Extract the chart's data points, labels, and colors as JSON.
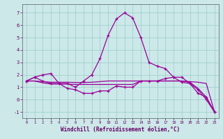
{
  "xlabel": "Windchill (Refroidissement éolien,°C)",
  "bg_color": "#cce8e8",
  "line_color": "#990099",
  "grid_color": "#99cccc",
  "text_color": "#660066",
  "x": [
    0,
    1,
    2,
    3,
    4,
    5,
    6,
    7,
    8,
    9,
    10,
    11,
    12,
    13,
    14,
    15,
    16,
    17,
    18,
    19,
    20,
    21,
    22,
    23
  ],
  "curve_main": [
    1.5,
    1.8,
    2.0,
    2.1,
    1.3,
    1.3,
    1.0,
    1.5,
    2.0,
    3.3,
    5.2,
    6.5,
    7.0,
    6.6,
    5.0,
    3.0,
    2.7,
    2.5,
    1.8,
    1.8,
    1.3,
    0.8,
    0.0,
    -1.0
  ],
  "curve_low": [
    1.5,
    1.8,
    1.5,
    1.3,
    1.3,
    0.9,
    0.8,
    0.5,
    0.5,
    0.7,
    0.7,
    1.1,
    1.0,
    1.0,
    1.5,
    1.5,
    1.5,
    1.7,
    1.8,
    1.4,
    1.3,
    0.5,
    0.2,
    -1.0
  ],
  "curve_flat1": [
    1.5,
    1.5,
    1.45,
    1.4,
    1.4,
    1.4,
    1.38,
    1.38,
    1.4,
    1.45,
    1.5,
    1.5,
    1.5,
    1.5,
    1.5,
    1.5,
    1.5,
    1.5,
    1.5,
    1.5,
    1.45,
    1.4,
    1.3,
    -1.0
  ],
  "curve_flat2": [
    1.5,
    1.5,
    1.35,
    1.25,
    1.25,
    1.25,
    1.22,
    1.22,
    1.22,
    1.22,
    1.22,
    1.22,
    1.22,
    1.22,
    1.5,
    1.5,
    1.5,
    1.5,
    1.5,
    1.5,
    1.4,
    0.9,
    0.2,
    -1.0
  ],
  "ylim": [
    -1.5,
    7.7
  ],
  "xlim": [
    -0.5,
    23.5
  ],
  "yticks": [
    -1,
    0,
    1,
    2,
    3,
    4,
    5,
    6,
    7
  ],
  "xticks": [
    0,
    1,
    2,
    3,
    4,
    5,
    6,
    7,
    8,
    9,
    10,
    11,
    12,
    13,
    14,
    15,
    16,
    17,
    18,
    19,
    20,
    21,
    22,
    23
  ]
}
